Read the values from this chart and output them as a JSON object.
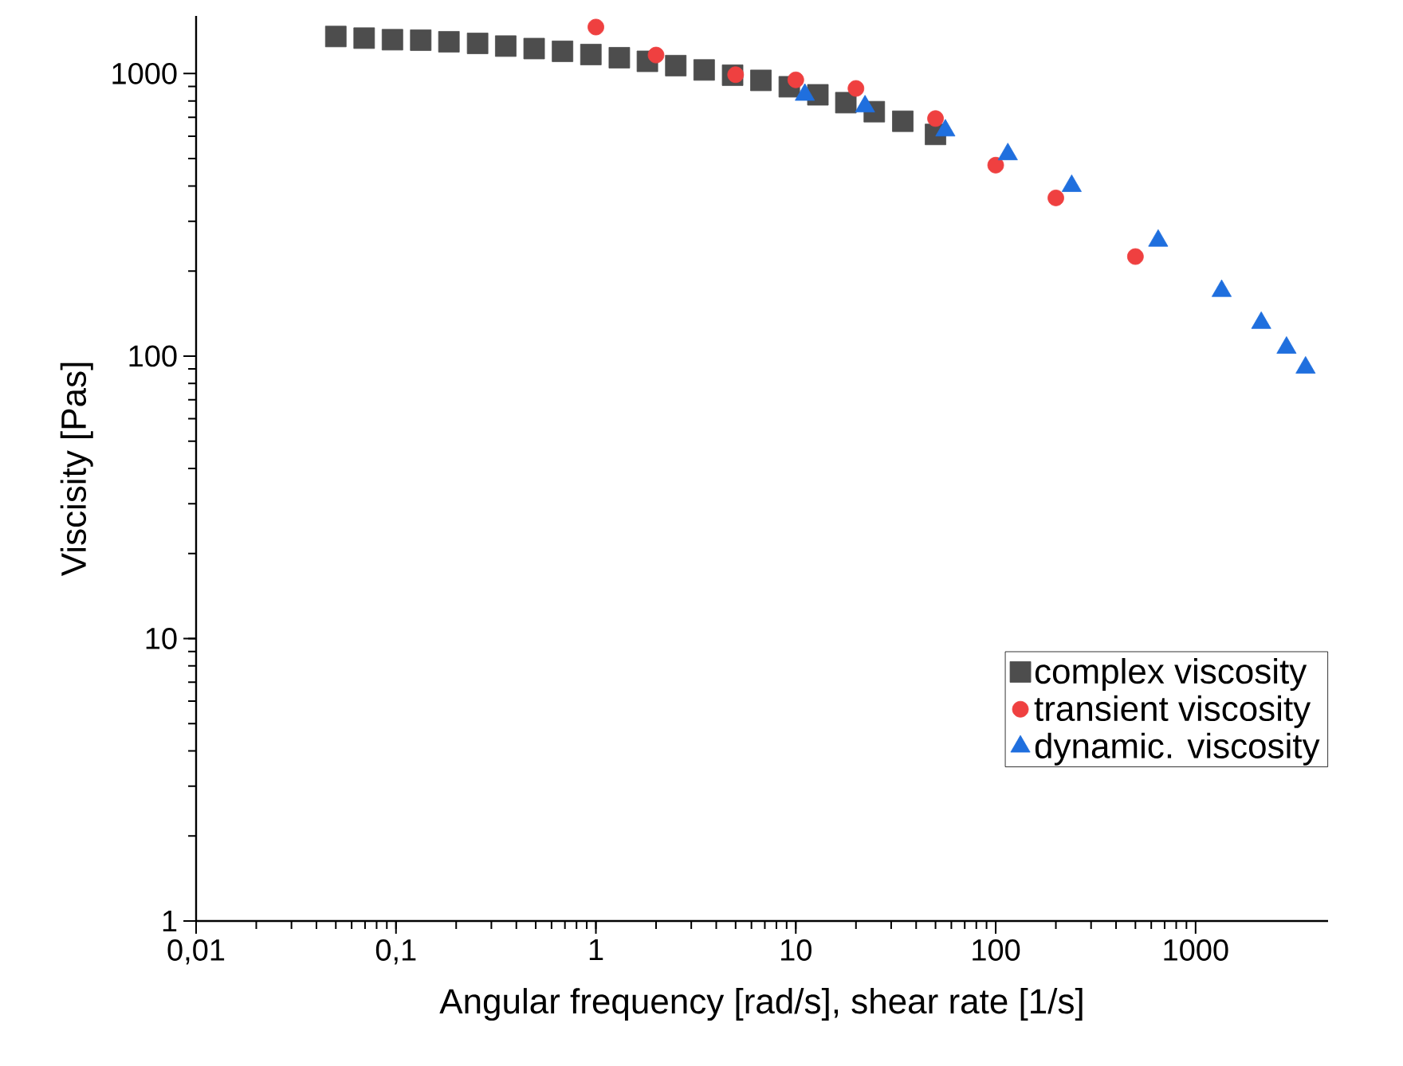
{
  "chart_data": {
    "type": "scatter",
    "xlabel": "Angular frequency [rad/s], shear rate [1/s]",
    "ylabel": "Viscisity [Pas]",
    "log": "xy",
    "grid": false,
    "legend": "bottom right",
    "xlim": [
      0.01,
      4600
    ],
    "ylim": [
      1,
      1600
    ],
    "xticks": [
      {
        "value": 0.01,
        "label": "0,01"
      },
      {
        "value": 0.1,
        "label": "0,1"
      },
      1,
      10,
      100,
      1000
    ],
    "yticks": [
      1,
      10,
      100,
      1000
    ],
    "series": [
      {
        "name": "complex viscosity",
        "color": "#4d4d4d",
        "marker": "square",
        "x": [
          0.05,
          0.0693,
          0.096,
          0.133,
          0.184,
          0.256,
          0.354,
          0.491,
          0.681,
          0.944,
          1.31,
          1.81,
          2.51,
          3.48,
          4.83,
          6.69,
          9.28,
          12.9,
          17.8,
          24.7,
          34.3,
          50
        ],
        "values": [
          1353,
          1335,
          1318,
          1313,
          1296,
          1279,
          1251,
          1226,
          1199,
          1168,
          1138,
          1105,
          1067,
          1030,
          987,
          946,
          898,
          841,
          789,
          733,
          678,
          609
        ]
      },
      {
        "name": "transient viscosity",
        "color": "#ef4040",
        "marker": "circle",
        "x": [
          1,
          2,
          5,
          10,
          20,
          50,
          100,
          200,
          500
        ],
        "values": [
          1461,
          1163,
          991,
          950,
          886,
          693,
          474,
          363,
          225
        ]
      },
      {
        "name": "dynamic. viscosity",
        "color": "#1f6fde",
        "marker": "triangle",
        "x": [
          11.1,
          22.2,
          56,
          115,
          240,
          650,
          1350,
          2130,
          2850,
          3550
        ],
        "values": [
          841,
          765,
          629,
          518,
          400,
          256,
          170,
          131,
          107,
          91
        ]
      }
    ]
  }
}
